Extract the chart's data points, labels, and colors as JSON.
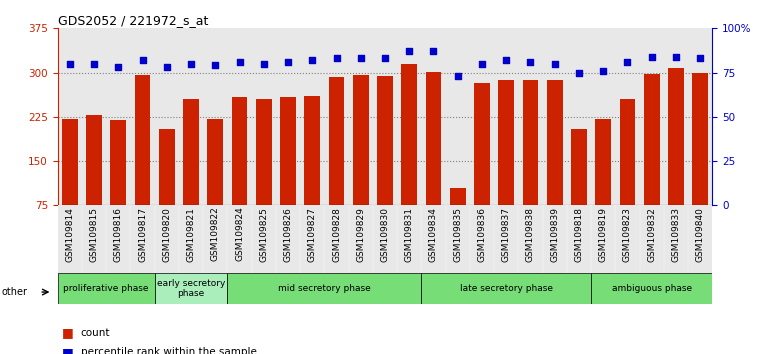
{
  "title": "GDS2052 / 221972_s_at",
  "samples": [
    "GSM109814",
    "GSM109815",
    "GSM109816",
    "GSM109817",
    "GSM109820",
    "GSM109821",
    "GSM109822",
    "GSM109824",
    "GSM109825",
    "GSM109826",
    "GSM109827",
    "GSM109828",
    "GSM109829",
    "GSM109830",
    "GSM109831",
    "GSM109834",
    "GSM109835",
    "GSM109836",
    "GSM109837",
    "GSM109838",
    "GSM109839",
    "GSM109818",
    "GSM109819",
    "GSM109823",
    "GSM109832",
    "GSM109833",
    "GSM109840"
  ],
  "counts": [
    222,
    228,
    219,
    296,
    205,
    255,
    222,
    258,
    255,
    258,
    260,
    293,
    296,
    295,
    315,
    301,
    105,
    282,
    288,
    288,
    287,
    205,
    222,
    255,
    298,
    307,
    300
  ],
  "percentiles": [
    80,
    80,
    78,
    82,
    78,
    80,
    79,
    81,
    80,
    81,
    82,
    83,
    83,
    83,
    87,
    87,
    73,
    80,
    82,
    81,
    80,
    75,
    76,
    81,
    84,
    84,
    83
  ],
  "phases": [
    {
      "name": "proliferative phase",
      "start": 0,
      "end": 4,
      "color": "#77dd77"
    },
    {
      "name": "early secretory\nphase",
      "start": 4,
      "end": 7,
      "color": "#aaeebb"
    },
    {
      "name": "mid secretory phase",
      "start": 7,
      "end": 15,
      "color": "#77dd77"
    },
    {
      "name": "late secretory phase",
      "start": 15,
      "end": 22,
      "color": "#77dd77"
    },
    {
      "name": "ambiguous phase",
      "start": 22,
      "end": 27,
      "color": "#77dd77"
    }
  ],
  "ylim_left": [
    75,
    375
  ],
  "ylim_right": [
    0,
    100
  ],
  "yticks_left": [
    75,
    150,
    225,
    300,
    375
  ],
  "yticks_right": [
    0,
    25,
    50,
    75,
    100
  ],
  "bar_color": "#cc2200",
  "dot_color": "#0000cc",
  "bg_color": "#e8e8e8",
  "other_label": "other"
}
